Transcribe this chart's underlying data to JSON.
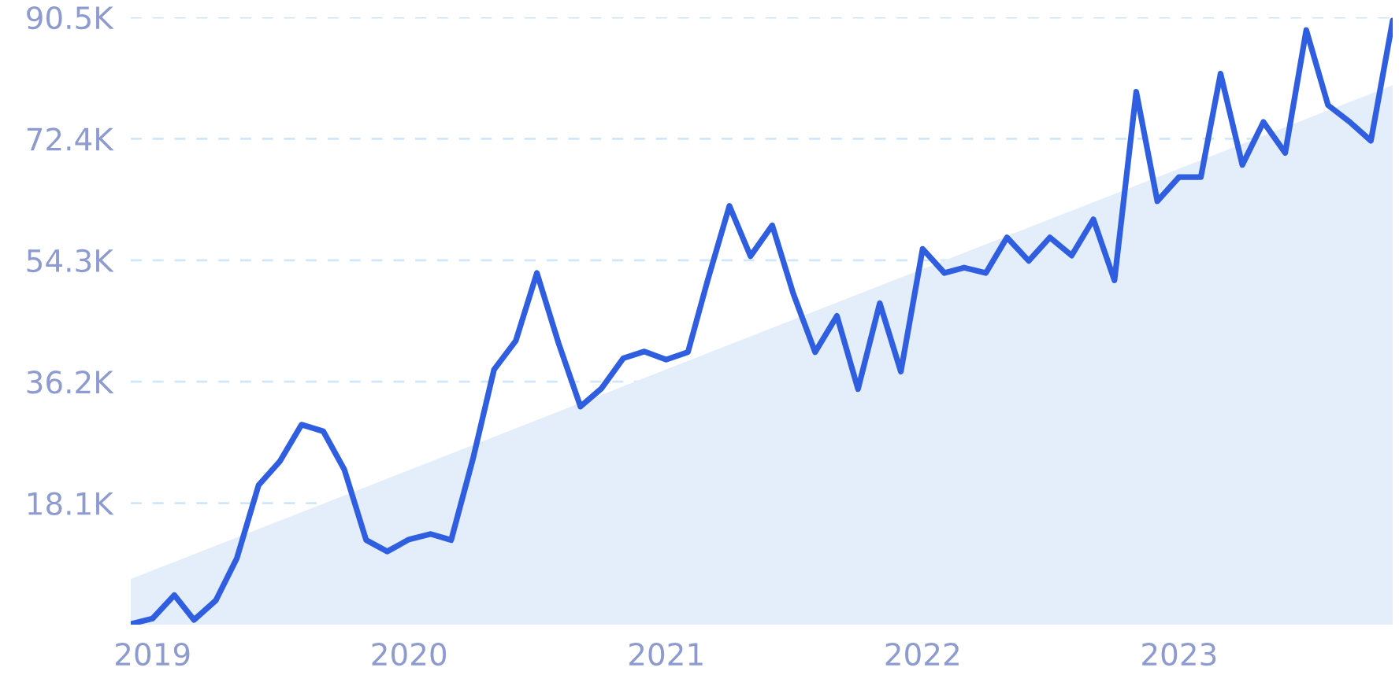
{
  "chart_data": {
    "type": "line",
    "x": [
      "2018-12",
      "2019-01",
      "2019-02",
      "2019-03",
      "2019-04",
      "2019-05",
      "2019-06",
      "2019-07",
      "2019-08",
      "2019-09",
      "2019-10",
      "2019-11",
      "2019-12",
      "2020-01",
      "2020-02",
      "2020-03",
      "2020-04",
      "2020-05",
      "2020-06",
      "2020-07",
      "2020-08",
      "2020-09",
      "2020-10",
      "2020-11",
      "2020-12",
      "2021-01",
      "2021-02",
      "2021-03",
      "2021-04",
      "2021-05",
      "2021-06",
      "2021-07",
      "2021-08",
      "2021-09",
      "2021-10",
      "2021-11",
      "2021-12",
      "2022-01",
      "2022-02",
      "2022-03",
      "2022-04",
      "2022-05",
      "2022-06",
      "2022-07",
      "2022-08",
      "2022-09",
      "2022-10",
      "2022-11",
      "2022-12",
      "2023-01",
      "2023-02",
      "2023-03",
      "2023-04",
      "2023-05",
      "2023-06",
      "2023-07",
      "2023-08",
      "2023-09",
      "2023-10",
      "2023-11"
    ],
    "series": [
      {
        "type": "area",
        "color": "#e4eefb",
        "x": [
          "2018-12",
          "2023-11"
        ],
        "values": [
          6800,
          80400
        ]
      },
      {
        "color": "#2f5fe0",
        "values": [
          100,
          900,
          4400,
          700,
          3600,
          9900,
          20800,
          24300,
          29800,
          28800,
          23100,
          12600,
          10900,
          12700,
          13500,
          12600,
          24700,
          38000,
          42300,
          52400,
          41900,
          32500,
          35200,
          39700,
          40700,
          39500,
          40600,
          51300,
          62400,
          54900,
          59500,
          49300,
          40600,
          46000,
          35100,
          47900,
          37700,
          56000,
          52400,
          53200,
          52400,
          57700,
          54200,
          57700,
          55000,
          60400,
          51300,
          79400,
          63100,
          66700,
          66700,
          82100,
          68500,
          74900,
          70300,
          88600,
          77400,
          74900,
          72100,
          90000
        ]
      }
    ],
    "xlim": [
      "2018-12",
      "2023-11"
    ],
    "xticks": [
      {
        "value": "2019-01",
        "label": "2019"
      },
      {
        "value": "2020-01",
        "label": "2020"
      },
      {
        "value": "2021-01",
        "label": "2021"
      },
      {
        "value": "2022-01",
        "label": "2022"
      },
      {
        "value": "2023-01",
        "label": "2023"
      }
    ],
    "ylim": [
      0,
      90500
    ],
    "yticks": [
      {
        "value": 18100,
        "label": "18.1K"
      },
      {
        "value": 36200,
        "label": "36.2K"
      },
      {
        "value": 54300,
        "label": "54.3K"
      },
      {
        "value": 72400,
        "label": "72.4K"
      },
      {
        "value": 90500,
        "label": "90.5K"
      }
    ],
    "grid": "y",
    "legend": false,
    "marker": "none",
    "line_style": "solid"
  }
}
